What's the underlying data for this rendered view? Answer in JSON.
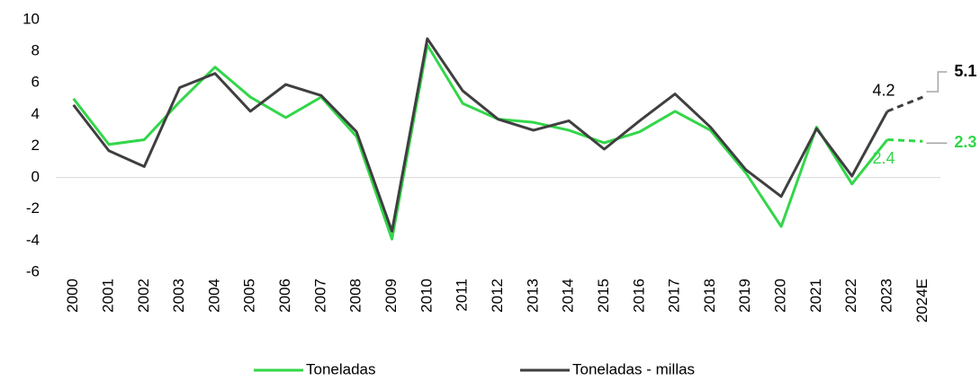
{
  "chart_data": {
    "type": "line",
    "categories": [
      "2000",
      "2001",
      "2002",
      "2003",
      "2004",
      "2005",
      "2006",
      "2007",
      "2008",
      "2009",
      "2010",
      "2011",
      "2012",
      "2013",
      "2014",
      "2015",
      "2016",
      "2017",
      "2018",
      "2019",
      "2020",
      "2021",
      "2022",
      "2023",
      "2024E"
    ],
    "series": [
      {
        "name": "Toneladas",
        "color": "#33d64a",
        "values": [
          5.0,
          2.1,
          2.4,
          4.8,
          7.0,
          5.1,
          3.8,
          5.1,
          2.6,
          -3.9,
          8.4,
          4.7,
          3.7,
          3.5,
          3.0,
          2.2,
          2.9,
          4.2,
          3.0,
          0.3,
          -3.1,
          3.2,
          -0.4,
          2.4,
          2.3
        ]
      },
      {
        "name": "Toneladas - millas",
        "color": "#3f3f3f",
        "values": [
          4.6,
          1.7,
          0.7,
          5.7,
          6.6,
          4.2,
          5.9,
          5.2,
          2.9,
          -3.4,
          8.8,
          5.5,
          3.7,
          3.0,
          3.6,
          1.8,
          3.6,
          5.3,
          3.2,
          0.5,
          -1.2,
          3.1,
          0.1,
          4.2,
          5.1
        ]
      }
    ],
    "ylim": [
      -6,
      10
    ],
    "yticks": [
      -6,
      -4,
      -2,
      0,
      2,
      4,
      6,
      8,
      10
    ]
  }
}
